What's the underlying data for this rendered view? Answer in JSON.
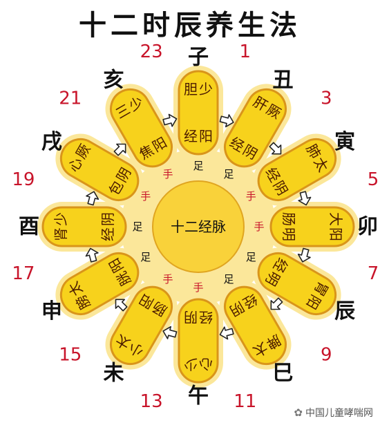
{
  "title": "十二时辰养生法",
  "center_label": "十二经脉",
  "meridians": [
    {
      "branch": "子",
      "hour_left": "23",
      "hour_right": "1",
      "name": "少阳胆经",
      "foot_hand": "足"
    },
    {
      "branch": "丑",
      "hour_left": "1",
      "hour_right": "3",
      "name": "厥阴肝经",
      "foot_hand": "足"
    },
    {
      "branch": "寅",
      "hour_left": "3",
      "hour_right": "5",
      "name": "太阴肺经",
      "foot_hand": "手"
    },
    {
      "branch": "卯",
      "hour_left": "5",
      "hour_right": "7",
      "name": "阳明大肠",
      "foot_hand": "手"
    },
    {
      "branch": "辰",
      "hour_left": "7",
      "hour_right": "9",
      "name": "阳明胃经",
      "foot_hand": "足"
    },
    {
      "branch": "巳",
      "hour_left": "9",
      "hour_right": "11",
      "name": "太阴脾经",
      "foot_hand": "足"
    },
    {
      "branch": "午",
      "hour_left": "11",
      "hour_right": "13",
      "name": "少阴心经",
      "foot_hand": "手"
    },
    {
      "branch": "未",
      "hour_left": "13",
      "hour_right": "15",
      "name": "太阳小肠",
      "foot_hand": "手"
    },
    {
      "branch": "申",
      "hour_left": "15",
      "hour_right": "17",
      "name": "太阳膀胱",
      "foot_hand": "足"
    },
    {
      "branch": "酉",
      "hour_left": "17",
      "hour_right": "19",
      "name": "少阴肾经",
      "foot_hand": "足"
    },
    {
      "branch": "戌",
      "hour_left": "19",
      "hour_right": "21",
      "name": "厥阴心包",
      "foot_hand": "手"
    },
    {
      "branch": "亥",
      "hour_left": "21",
      "hour_right": "23",
      "name": "少阳三焦",
      "foot_hand": "手"
    }
  ],
  "hours": [
    "1",
    "3",
    "5",
    "7",
    "9",
    "11",
    "13",
    "15",
    "17",
    "19",
    "21",
    "23"
  ],
  "watermark": "中国儿童哮喘网",
  "colors": {
    "capsule_fill": "#f7d21c",
    "capsule_stroke": "#d9951a",
    "petal_fill": "#fbe79a",
    "center_fill": "#f9d23a",
    "hour_number": "#c8142a",
    "hand_char": "#c8142a",
    "foot_char": "#111111",
    "branch_char": "#111111",
    "arrow_fill": "#ffffff",
    "arrow_stroke": "#222222"
  }
}
